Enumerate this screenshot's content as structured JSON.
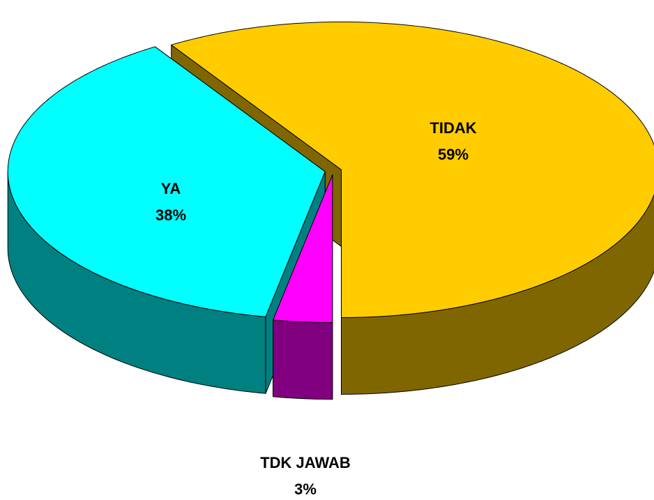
{
  "chart_data": {
    "type": "pie3d",
    "categories": [
      "TIDAK",
      "YA",
      "TDK JAWAB"
    ],
    "values": [
      59,
      38,
      3
    ],
    "value_labels": [
      "59%",
      "38%",
      "3%"
    ],
    "colors": [
      "#ffcc00",
      "#00ffff",
      "#ff00ff"
    ]
  }
}
